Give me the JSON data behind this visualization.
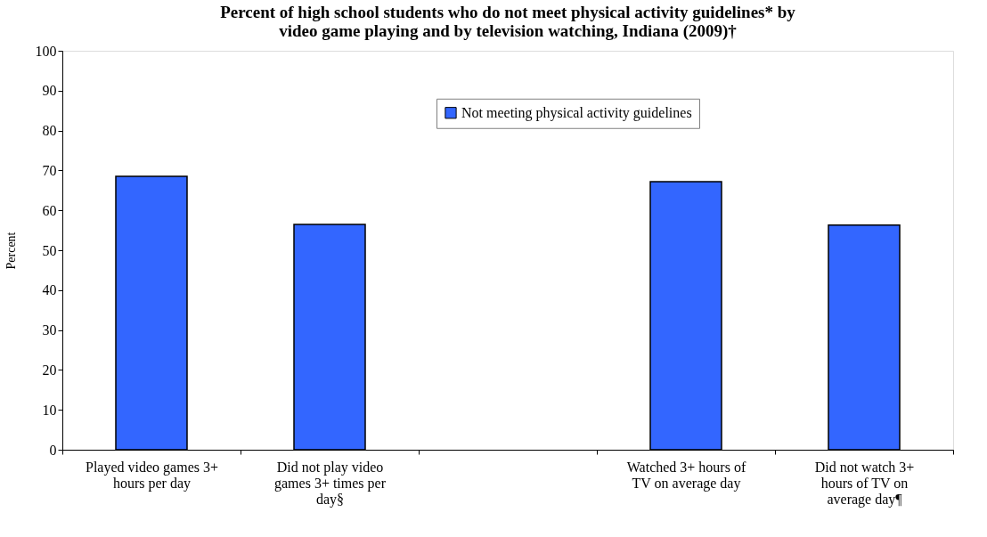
{
  "chart_data": {
    "type": "bar",
    "title": "Percent of high school students who do not meet physical activity guidelines* by video game playing and by television watching, Indiana (2009)†",
    "categories": [
      "Played video games 3+ hours per day",
      "Did not play video games 3+ times per day§",
      null,
      "Watched 3+ hours of TV on average day",
      "Did not watch 3+ hours of  TV on average day¶"
    ],
    "series": [
      {
        "name": "Not meeting physical activity guidelines",
        "color": "#3366ff",
        "values": [
          68.5,
          56.5,
          null,
          67.2,
          56.3
        ]
      }
    ],
    "ylabel": "Percent",
    "ylim": [
      0,
      100
    ],
    "yticks": [
      0,
      10,
      20,
      30,
      40,
      50,
      60,
      70,
      80,
      90,
      100
    ],
    "grid": false,
    "legend": "top"
  }
}
